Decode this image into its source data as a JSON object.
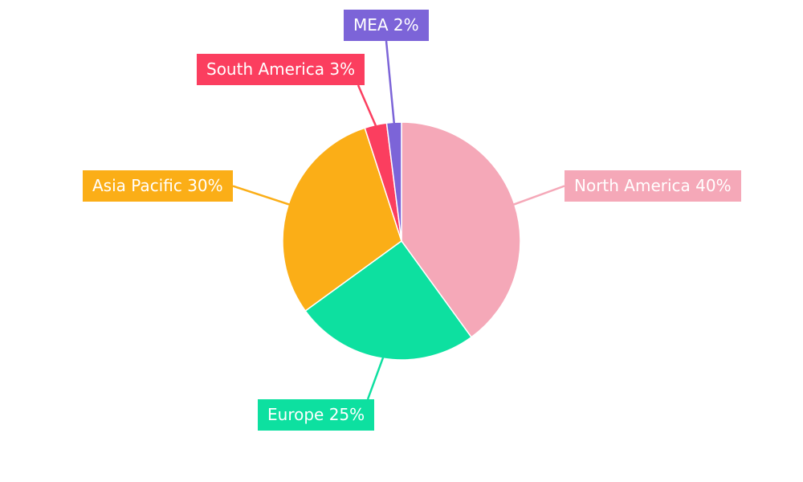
{
  "chart_data": {
    "type": "pie",
    "title": "",
    "unit": "%",
    "categories": [
      "North America",
      "Europe",
      "Asia Pacific",
      "South America",
      "MEA"
    ],
    "values": [
      40,
      25,
      30,
      3,
      2
    ],
    "start_angle": "12-o'clock",
    "direction": "clockwise",
    "legend_position": "external callout labels with leader lines",
    "background": "#ffffff",
    "slices": [
      {
        "label": "North America",
        "value": 40,
        "color": "#F5A8B8",
        "label_text": "North America 40%"
      },
      {
        "label": "Europe",
        "value": 25,
        "color": "#0DE0A0",
        "label_text": "Europe 25%"
      },
      {
        "label": "Asia Pacific",
        "value": 30,
        "color": "#FBAE17",
        "label_text": "Asia Pacific 30%"
      },
      {
        "label": "South America",
        "value": 3,
        "color": "#FB3E5F",
        "label_text": "South America 3%"
      },
      {
        "label": "MEA",
        "value": 2,
        "color": "#7C64D8",
        "label_text": "MEA 2%"
      }
    ]
  }
}
